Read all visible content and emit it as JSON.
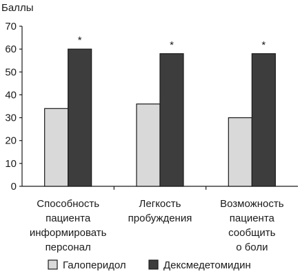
{
  "chart_data": {
    "type": "bar",
    "ylabel": "Баллы",
    "ylim": [
      0,
      70
    ],
    "yticks": [
      0,
      10,
      20,
      30,
      40,
      50,
      60,
      70
    ],
    "grid": false,
    "legend_position": "bottom",
    "categories": [
      [
        "Способность",
        "пациента",
        "информировать",
        "персонал"
      ],
      [
        "Легкость",
        "пробуждения"
      ],
      [
        "Возможность",
        "пациента",
        "сообщить",
        "о боли"
      ]
    ],
    "series": [
      {
        "name": "Галоперидол",
        "color": "#d9d9d9",
        "values": [
          34,
          36,
          30
        ]
      },
      {
        "name": "Дексмедетомидин",
        "color": "#3d3d3d",
        "values": [
          60,
          58,
          58
        ]
      }
    ],
    "annotations": [
      {
        "series": 1,
        "category": 0,
        "text": "*"
      },
      {
        "series": 1,
        "category": 1,
        "text": "*"
      },
      {
        "series": 1,
        "category": 2,
        "text": "*"
      }
    ]
  }
}
